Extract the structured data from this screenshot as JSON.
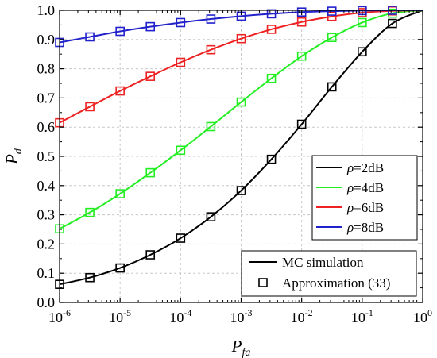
{
  "chart_data": {
    "type": "line",
    "xscale": "log",
    "xlim": [
      "1e-6",
      "1e0"
    ],
    "ylim": [
      0,
      1
    ],
    "xlabel": {
      "main": "P",
      "sub": "fa"
    },
    "ylabel": {
      "main": "P",
      "sub": "d"
    },
    "x_tick_labels": [
      {
        "base": "10",
        "exp": "-6"
      },
      {
        "base": "10",
        "exp": "-5"
      },
      {
        "base": "10",
        "exp": "-4"
      },
      {
        "base": "10",
        "exp": "-3"
      },
      {
        "base": "10",
        "exp": "-2"
      },
      {
        "base": "10",
        "exp": "-1"
      },
      {
        "base": "10",
        "exp": "0"
      }
    ],
    "y_tick_labels": [
      "0.0",
      "0.1",
      "0.2",
      "0.3",
      "0.4",
      "0.5",
      "0.6",
      "0.7",
      "0.8",
      "0.9",
      "1.0"
    ],
    "grid": true,
    "x": [
      1e-06,
      3.16e-06,
      1e-05,
      3.16e-05,
      0.0001,
      0.000316,
      0.001,
      0.00316,
      0.01,
      0.0316,
      0.1,
      0.316,
      1
    ],
    "series": [
      {
        "name": "ρ=2dB",
        "rho": "ρ",
        "rest": "=2dB",
        "color": "#000000",
        "values": [
          0.062,
          0.085,
          0.118,
          0.163,
          0.22,
          0.293,
          0.383,
          0.49,
          0.61,
          0.738,
          0.858,
          0.955,
          1.0
        ]
      },
      {
        "name": "ρ=4dB",
        "rho": "ρ",
        "rest": "=4dB",
        "color": "#22ee22",
        "values": [
          0.252,
          0.308,
          0.372,
          0.444,
          0.521,
          0.602,
          0.686,
          0.767,
          0.843,
          0.907,
          0.958,
          0.99,
          1.0
        ]
      },
      {
        "name": "ρ=6dB",
        "rho": "ρ",
        "rest": "=6dB",
        "color": "#ee2222",
        "values": [
          0.615,
          0.67,
          0.724,
          0.774,
          0.822,
          0.865,
          0.903,
          0.935,
          0.96,
          0.979,
          0.992,
          0.998,
          1.0
        ]
      },
      {
        "name": "ρ=8dB",
        "rho": "ρ",
        "rest": "=8dB",
        "color": "#2222cc",
        "values": [
          0.89,
          0.909,
          0.928,
          0.944,
          0.958,
          0.97,
          0.98,
          0.988,
          0.994,
          0.997,
          0.999,
          1.0,
          1.0
        ]
      }
    ],
    "legend_series_position": "right",
    "legend_style_position": "bottom-right",
    "legend_styles": [
      {
        "label": "MC simulation",
        "kind": "line"
      },
      {
        "label": "Approximation (33)",
        "kind": "square-marker"
      }
    ]
  }
}
